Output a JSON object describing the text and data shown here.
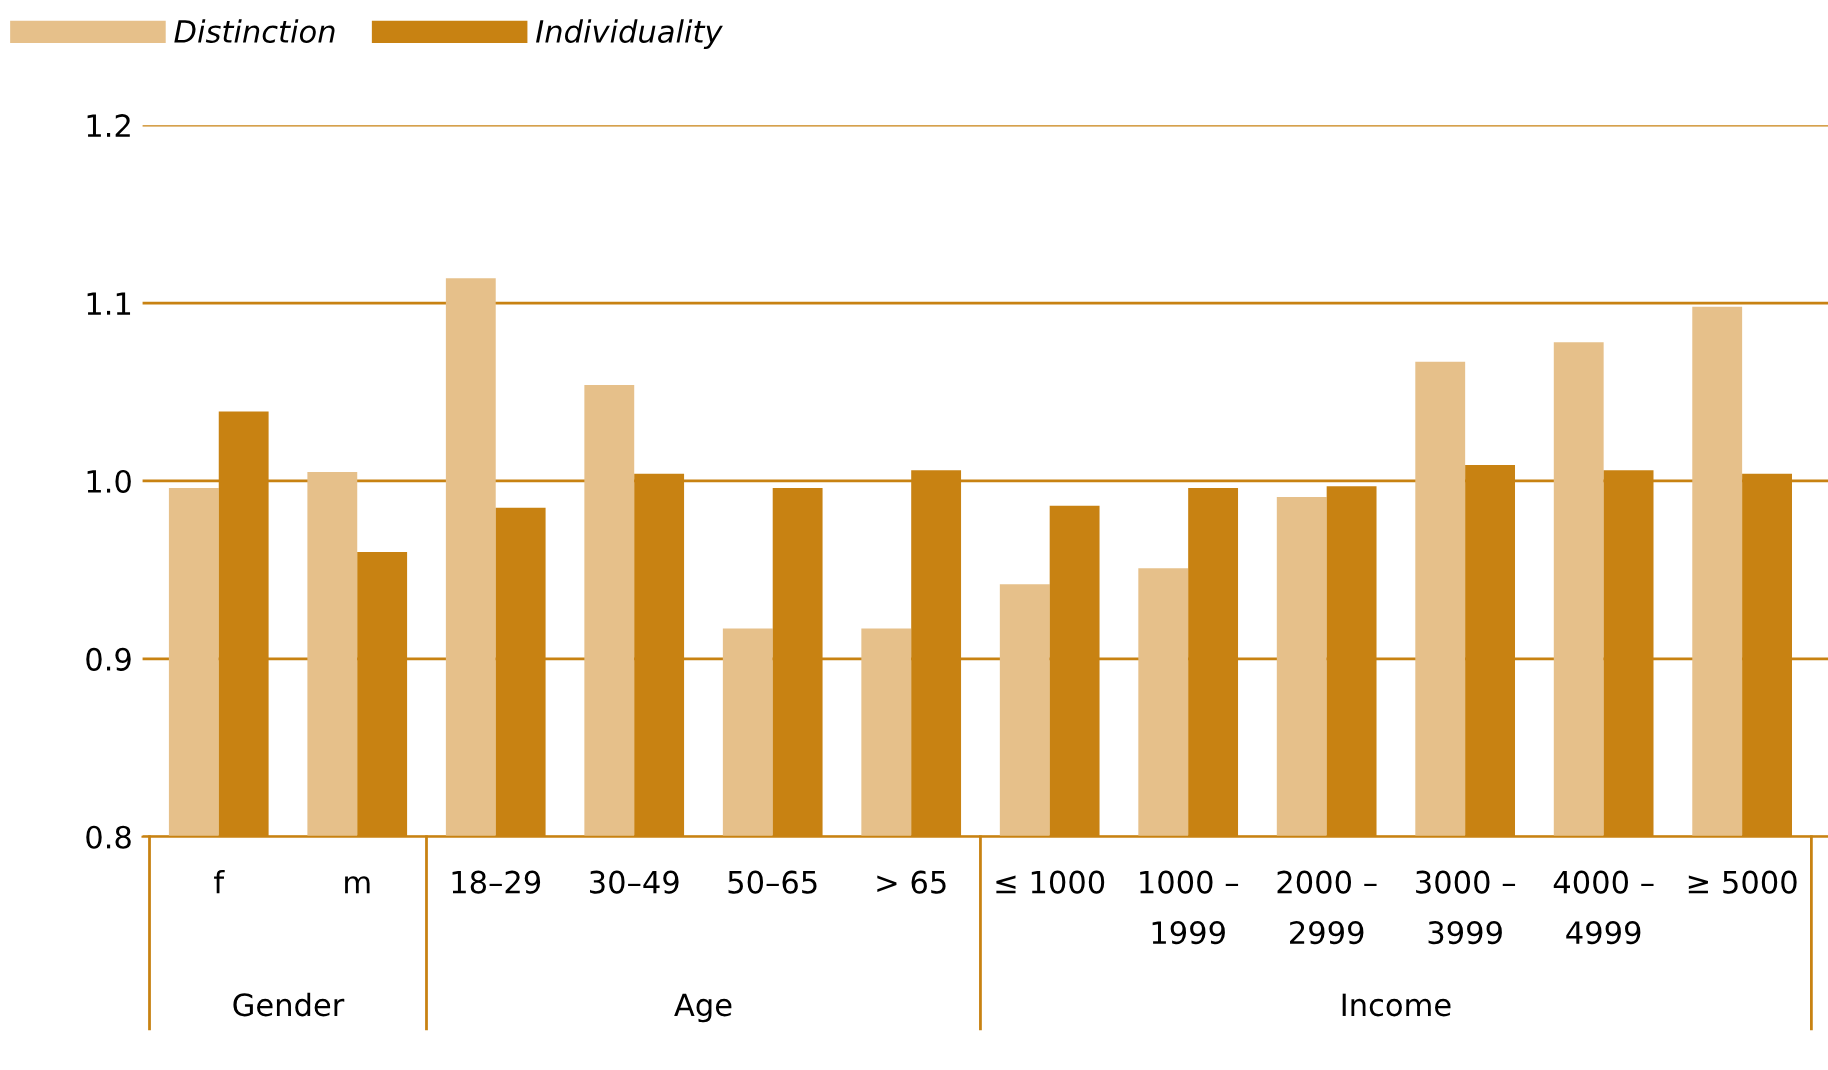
{
  "chart_data": {
    "type": "bar",
    "categories": [
      "f",
      "m",
      "18–29",
      "30–49",
      "50–65",
      "> 65",
      "≤ 1000",
      "1000 –\n1999",
      "2000 –\n2999",
      "3000 –\n3999",
      "4000 –\n4999",
      "≥ 5000"
    ],
    "series": [
      {
        "name": "Distinction",
        "color": "#e6c08a",
        "values": [
          0.996,
          1.005,
          1.114,
          1.054,
          0.917,
          0.917,
          0.942,
          0.951,
          0.991,
          1.067,
          1.078,
          1.098
        ]
      },
      {
        "name": "Individuality",
        "color": "#c88212",
        "values": [
          1.039,
          0.96,
          0.985,
          1.004,
          0.996,
          1.006,
          0.986,
          0.996,
          0.997,
          1.009,
          1.006,
          1.004
        ]
      }
    ],
    "ylim": [
      0.8,
      1.2
    ],
    "yticks": [
      0.8,
      0.9,
      {
        "value": 1,
        "label": "1.0"
      },
      1.1,
      1.2
    ],
    "grid": "y",
    "legend": "top left",
    "annotations": [
      "Gender",
      "Age",
      "Income"
    ]
  }
}
